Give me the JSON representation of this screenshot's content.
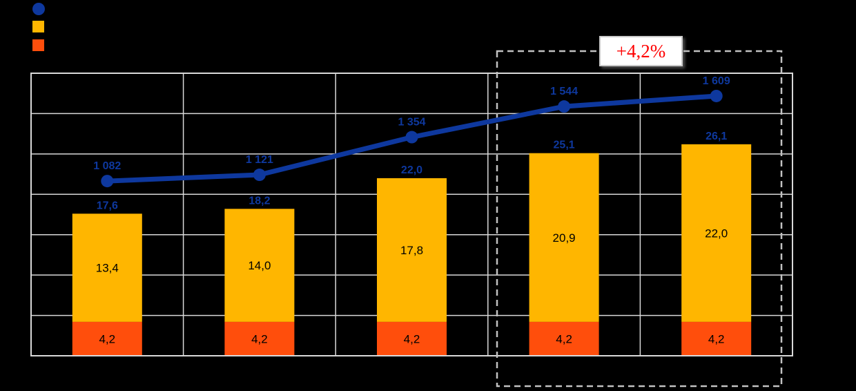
{
  "legend": {
    "items": [
      {
        "name": "line-series-marker",
        "marker": "circle",
        "color": "#0E389E"
      },
      {
        "name": "yellow-series-marker",
        "marker": "square",
        "color": "#FFB600"
      },
      {
        "name": "orange-series-marker",
        "marker": "square",
        "color": "#FF4E0C"
      }
    ]
  },
  "annotation": {
    "label": "+4,2%",
    "color": "#FF0000"
  },
  "colors": {
    "background": "#000000",
    "gridline": "#D9D9D9",
    "plot_border": "#D9D9D9",
    "highlight_dash": "#C2C2C2",
    "line": "#0E389E",
    "bar_yellow": "#FFB600",
    "bar_orange": "#FF4E0C",
    "value_label_blue": "#0E389E",
    "segment_label_black": "#000000",
    "annotation_red": "#FF0000"
  },
  "chart_data": {
    "type": "combo-stacked-bar-and-line",
    "categories": [
      "",
      "",
      "",
      "",
      ""
    ],
    "bar_series": [
      {
        "name": "orange-bottom-segment",
        "color": "#FF4E0C",
        "values": [
          4.2,
          4.2,
          4.2,
          4.2,
          4.2
        ],
        "labels": [
          "4,2",
          "4,2",
          "4,2",
          "4,2",
          "4,2"
        ]
      },
      {
        "name": "yellow-top-segment",
        "color": "#FFB600",
        "values": [
          13.4,
          14.0,
          17.8,
          20.9,
          22.0
        ],
        "labels": [
          "13,4",
          "14,0",
          "17,8",
          "20,9",
          "22,0"
        ]
      }
    ],
    "bar_totals": {
      "values": [
        17.6,
        18.2,
        22.0,
        25.1,
        26.1
      ],
      "labels": [
        "17,6",
        "18,2",
        "22,0",
        "25,1",
        "26,1"
      ]
    },
    "line_series": {
      "name": "blue-line",
      "color": "#0E389E",
      "values": [
        1082,
        1121,
        1354,
        1544,
        1609
      ],
      "labels": [
        "1 082",
        "1 121",
        "1 354",
        "1 544",
        "1 609"
      ]
    },
    "primary_axis": {
      "min": 0,
      "max": 35,
      "gridline_step": 5,
      "labels_visible": false
    },
    "secondary_axis": {
      "min": 0,
      "max": 1750,
      "gridline_step": 250,
      "labels_visible": false
    },
    "grid": true,
    "legend_position": "top-left",
    "highlight": {
      "label": "+4,2%",
      "start_category_index": 3,
      "end_category_index": 4
    }
  }
}
